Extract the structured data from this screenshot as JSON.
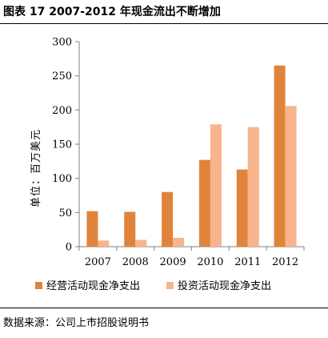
{
  "header": {
    "title": "图表 17 2007-2012 年现金流出不断增加"
  },
  "source": "数据来源：公司上市招股说明书",
  "colors": {
    "series1": "#e0843c",
    "series2": "#f8b48c",
    "axis": "#7f7f7f"
  },
  "chart_data": {
    "type": "bar",
    "title": "",
    "xlabel": "",
    "ylabel": "单位：百万美元",
    "categories": [
      "2007",
      "2008",
      "2009",
      "2010",
      "2011",
      "2012"
    ],
    "series": [
      {
        "name": "经营活动现金净支出",
        "values": [
          52,
          51,
          80,
          127,
          113,
          265
        ]
      },
      {
        "name": "投资活动现金净支出",
        "values": [
          9,
          10,
          13,
          179,
          175,
          206
        ]
      }
    ],
    "ylim": [
      0,
      300
    ],
    "yticks": [
      0,
      50,
      100,
      150,
      200,
      250,
      300
    ],
    "grid": false,
    "legend_position": "bottom"
  }
}
